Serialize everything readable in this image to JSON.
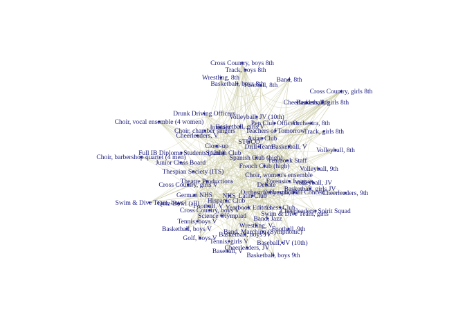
{
  "nodes": [
    {
      "label": "Cross Country, boys 8th"
    },
    {
      "label": "Track, boys 8th"
    },
    {
      "label": "Wrestling, 8th"
    },
    {
      "label": "Band, 8th"
    },
    {
      "label": "Basketball, boys 8th"
    },
    {
      "label": "Football, 8th"
    },
    {
      "label": "Cross Country, girls 8th"
    },
    {
      "label": "Basketball, girls 8th"
    },
    {
      "label": "Cheerleaders, 8th"
    },
    {
      "label": "Drunk Driving Officers"
    },
    {
      "label": "Volleyball, JV (10th)"
    },
    {
      "label": "Choir, vocal ensemble (4 women)"
    },
    {
      "label": "Pep Club Officers"
    },
    {
      "label": "Orchestra, 8th"
    },
    {
      "label": "Basketball, girls V"
    },
    {
      "label": "Interact"
    },
    {
      "label": "Teachers of Tomorrow"
    },
    {
      "label": "Choir, chamber singers"
    },
    {
      "label": "Track, girls 8th"
    },
    {
      "label": "Cheerleaders, V"
    },
    {
      "label": "Asian Club"
    },
    {
      "label": "STUCO"
    },
    {
      "label": "Drill Team"
    },
    {
      "label": "Basketball, V"
    },
    {
      "label": "Volleyball, 8th"
    },
    {
      "label": "Close-up"
    },
    {
      "label": "Full IB Diploma Students (12th)"
    },
    {
      "label": "Spanish Club"
    },
    {
      "label": "Choir, barbershop quartet (4 men)"
    },
    {
      "label": "Spanish Club (high)"
    },
    {
      "label": "Junior Class Board"
    },
    {
      "label": "Yearbook Staff"
    },
    {
      "label": "French Club (high)"
    },
    {
      "label": "Volleyball, 9th"
    },
    {
      "label": "Thespian Society (ITS)"
    },
    {
      "label": "Choir, women's ensemble"
    },
    {
      "label": "Forensics League"
    },
    {
      "label": "Theatre Productions"
    },
    {
      "label": "Debate"
    },
    {
      "label": "Volleyball, JV"
    },
    {
      "label": "Cross Country, girls V"
    },
    {
      "label": "Basketball, girls JV"
    },
    {
      "label": "Orchestra, Full Concert"
    },
    {
      "label": "Cheerleaders, 9th"
    },
    {
      "label": "German NHS"
    },
    {
      "label": "NHS"
    },
    {
      "label": "Latin Club"
    },
    {
      "label": "Hispanic Club"
    },
    {
      "label": "Orchestra, Symphonic"
    },
    {
      "label": "Swim & Dive Team, boys"
    },
    {
      "label": "Quiz-Bowl (all)"
    },
    {
      "label": "Football, V"
    },
    {
      "label": "Yearbook Editors"
    },
    {
      "label": "Chess Club"
    },
    {
      "label": "Cheerleaders, Spirit Squad"
    },
    {
      "label": "Cross Country, boys V"
    },
    {
      "label": "Swim & Dive Team, girls"
    },
    {
      "label": "Science Olympiad"
    },
    {
      "label": "Tennis, boys V"
    },
    {
      "label": "Band, Jazz"
    },
    {
      "label": "Wrestling, V"
    },
    {
      "label": "Basketball, boys V"
    },
    {
      "label": "Football, 9th"
    },
    {
      "label": "Band, Marching (Symphonic)"
    },
    {
      "label": "Basketball, boys JV"
    },
    {
      "label": "Golf, boys V"
    },
    {
      "label": "Tennis, girls V"
    },
    {
      "label": "Baseball, JV (10th)"
    },
    {
      "label": "Cheerleaders, JV"
    },
    {
      "label": "Baseball, V"
    },
    {
      "label": "Basketball, boys 9th"
    }
  ]
}
